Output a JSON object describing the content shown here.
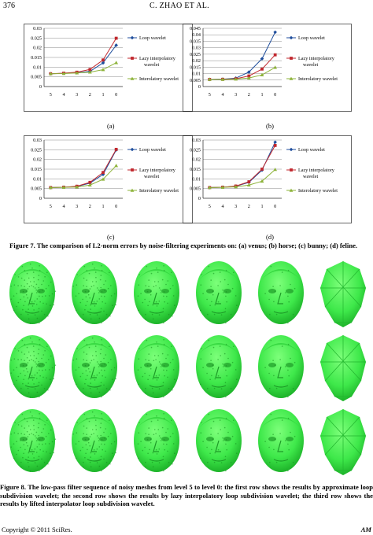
{
  "header": {
    "page_number": "376",
    "running_head": "C. ZHAO  ET  AL."
  },
  "figure7": {
    "caption": "Figure 7. The comparison of L2-norm errors by noise-filtering experiments on: (a) venus; (b) horse; (c) bunny; (d) feline.",
    "sublabels": [
      "(a)",
      "(b)",
      "(c)",
      "(d)"
    ]
  },
  "chart_data": [
    {
      "type": "line",
      "categories": [
        "5",
        "4",
        "3",
        "2",
        "1",
        "0"
      ],
      "ylim": [
        0,
        0.03
      ],
      "yticks": [
        "0",
        "0.005",
        "0.01",
        "0.015",
        "0.02",
        "0.025",
        "0.03"
      ],
      "grid": true,
      "legend_placement": "right",
      "series": [
        {
          "name": "Loop wavelet",
          "color": "#1f4e9c",
          "marker": "diamond",
          "values": [
            0.0066,
            0.0068,
            0.0071,
            0.0078,
            0.0122,
            0.0213
          ]
        },
        {
          "name": "Lazy interpolatory wavelet",
          "color": "#c0272d",
          "marker": "square",
          "values": [
            0.0066,
            0.0069,
            0.0074,
            0.0088,
            0.0137,
            0.0249
          ]
        },
        {
          "name": "Interolatory wavelet",
          "color": "#8db33a",
          "marker": "triangle",
          "values": [
            0.0066,
            0.0067,
            0.007,
            0.0074,
            0.0087,
            0.0123
          ]
        }
      ]
    },
    {
      "type": "line",
      "categories": [
        "5",
        "4",
        "3",
        "2",
        "1",
        "0"
      ],
      "ylim": [
        0,
        0.045
      ],
      "yticks": [
        "0",
        "0.005",
        "0.01",
        "0.015",
        "0.02",
        "0.025",
        "0.03",
        "0.035",
        "0.04",
        "0.045"
      ],
      "grid": true,
      "legend_placement": "right",
      "series": [
        {
          "name": "Loop wavelet",
          "color": "#1f4e9c",
          "marker": "diamond",
          "values": [
            0.0055,
            0.0057,
            0.0065,
            0.0112,
            0.0215,
            0.042
          ]
        },
        {
          "name": "Lazy interpolatory wavelet",
          "color": "#c0272d",
          "marker": "square",
          "values": [
            0.0055,
            0.0056,
            0.006,
            0.0082,
            0.0135,
            0.0245
          ]
        },
        {
          "name": "Interolatory wavelet",
          "color": "#8db33a",
          "marker": "triangle",
          "values": [
            0.0055,
            0.0055,
            0.0057,
            0.0066,
            0.009,
            0.0148
          ]
        }
      ]
    },
    {
      "type": "line",
      "categories": [
        "5",
        "4",
        "3",
        "2",
        "1",
        "0"
      ],
      "ylim": [
        0,
        0.03
      ],
      "yticks": [
        "0",
        "0.005",
        "0.01",
        "0.015",
        "0.02",
        "0.025",
        "0.03"
      ],
      "grid": true,
      "legend_placement": "right",
      "series": [
        {
          "name": "Loop wavelet",
          "color": "#1f4e9c",
          "marker": "diamond",
          "values": [
            0.0055,
            0.0057,
            0.0061,
            0.0078,
            0.0123,
            0.0249
          ]
        },
        {
          "name": "Lazy interpolatory wavelet",
          "color": "#c0272d",
          "marker": "square",
          "values": [
            0.0055,
            0.0057,
            0.0062,
            0.0082,
            0.0133,
            0.0252
          ]
        },
        {
          "name": "Interolatory wavelet",
          "color": "#8db33a",
          "marker": "triangle",
          "values": [
            0.0055,
            0.0056,
            0.0058,
            0.0068,
            0.0098,
            0.0168
          ]
        }
      ]
    },
    {
      "type": "line",
      "categories": [
        "5",
        "4",
        "3",
        "2",
        "1",
        "0"
      ],
      "ylim": [
        0,
        0.03
      ],
      "yticks": [
        "0",
        "0.005",
        "0.01",
        "0.015",
        "0.02",
        "0.025",
        "0.03"
      ],
      "grid": true,
      "legend_placement": "right",
      "series": [
        {
          "name": "Loop wavelet",
          "color": "#1f4e9c",
          "marker": "diamond",
          "values": [
            0.0055,
            0.0057,
            0.0062,
            0.0082,
            0.0145,
            0.0289
          ]
        },
        {
          "name": "Lazy interpolatory wavelet",
          "color": "#c0272d",
          "marker": "square",
          "values": [
            0.0055,
            0.0057,
            0.0063,
            0.0085,
            0.015,
            0.0272
          ]
        },
        {
          "name": "Interolatory wavelet",
          "color": "#8db33a",
          "marker": "triangle",
          "values": [
            0.0055,
            0.0056,
            0.0059,
            0.0068,
            0.0088,
            0.0148
          ]
        }
      ]
    }
  ],
  "figure8": {
    "caption": "Figure 8. The low-pass filter sequence of noisy meshes from level 5 to level 0: the first row shows the results by approximate loop subdivision wavelet; the second row shows the results by lazy interpolatory loop subdivision wavelet; the third row shows the results by lifted interpolator loop subdivision wavelet.",
    "mesh_color": "#3ee84a",
    "rows": 3,
    "levels_per_row": 6
  },
  "footer": {
    "copyright": "Copyright © 2011 SciRes.",
    "journal": "AM"
  }
}
